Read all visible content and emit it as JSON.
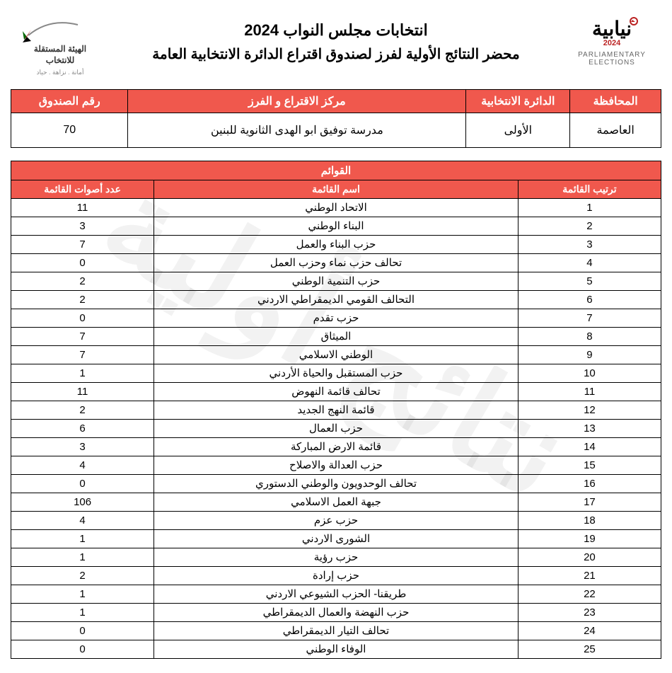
{
  "watermark": "نتائج أولية",
  "header": {
    "title1": "انتخابات مجلس النواب 2024",
    "title2": "محضر النتائج الأولية لفرز لصندوق اقتراع الدائرة الانتخابية العامة",
    "right_logo_year": "2024",
    "right_logo_sub": "PARLIAMENTARY ELECTIONS",
    "left_logo_line1": "الهيئة المستقلة",
    "left_logo_line2": "للانتخاب",
    "left_logo_tag": "أمانة . نزاهة . حياد"
  },
  "info": {
    "headers": {
      "gov": "المحافظة",
      "dist": "الدائرة الانتخابية",
      "center": "مركز الاقتراع و الفرز",
      "box": "رقم الصندوق"
    },
    "values": {
      "gov": "العاصمة",
      "dist": "الأولى",
      "center": "مدرسة توفيق ابو  الهدى الثانوية  للبنين",
      "box": "70"
    }
  },
  "lists": {
    "title": "القوائم",
    "headers": {
      "rank": "ترتيب القائمة",
      "name": "اسم القائمة",
      "votes": "عدد أصوات القائمة"
    },
    "rows": [
      {
        "rank": "1",
        "name": "الاتحاد الوطني",
        "votes": "11"
      },
      {
        "rank": "2",
        "name": "البناء الوطني",
        "votes": "3"
      },
      {
        "rank": "3",
        "name": "حزب البناء والعمل",
        "votes": "7"
      },
      {
        "rank": "4",
        "name": "تحالف حزب نماء وحزب العمل",
        "votes": "0"
      },
      {
        "rank": "5",
        "name": "حزب التنمية الوطني",
        "votes": "2"
      },
      {
        "rank": "6",
        "name": "التحالف القومي الديمقراطي الاردني",
        "votes": "2"
      },
      {
        "rank": "7",
        "name": "حزب تقدم",
        "votes": "0"
      },
      {
        "rank": "8",
        "name": "الميثاق",
        "votes": "7"
      },
      {
        "rank": "9",
        "name": "الوطني الاسلامي",
        "votes": "7"
      },
      {
        "rank": "10",
        "name": "حزب المستقبل والحياة الأردني",
        "votes": "1"
      },
      {
        "rank": "11",
        "name": "تحالف قائمة النهوض",
        "votes": "11"
      },
      {
        "rank": "12",
        "name": "قائمة النهج الجديد",
        "votes": "2"
      },
      {
        "rank": "13",
        "name": "حزب العمال",
        "votes": "6"
      },
      {
        "rank": "14",
        "name": "قائمة الارض المباركة",
        "votes": "3"
      },
      {
        "rank": "15",
        "name": "حزب العدالة والاصلاح",
        "votes": "4"
      },
      {
        "rank": "16",
        "name": "تحالف الوحدويون والوطني الدستوري",
        "votes": "0"
      },
      {
        "rank": "17",
        "name": "جبهة العمل الاسلامي",
        "votes": "106"
      },
      {
        "rank": "18",
        "name": "حزب عزم",
        "votes": "4"
      },
      {
        "rank": "19",
        "name": "الشورى الاردني",
        "votes": "1"
      },
      {
        "rank": "20",
        "name": "حزب رؤية",
        "votes": "1"
      },
      {
        "rank": "21",
        "name": "حزب إرادة",
        "votes": "2"
      },
      {
        "rank": "22",
        "name": "طريقنا- الحزب الشيوعي الاردني",
        "votes": "1"
      },
      {
        "rank": "23",
        "name": "حزب النهضة والعمال الديمقراطي",
        "votes": "1"
      },
      {
        "rank": "24",
        "name": "تحالف التيار الديمقراطي",
        "votes": "0"
      },
      {
        "rank": "25",
        "name": "الوفاء الوطني",
        "votes": "0"
      }
    ]
  },
  "colors": {
    "accent": "#f0584d"
  }
}
